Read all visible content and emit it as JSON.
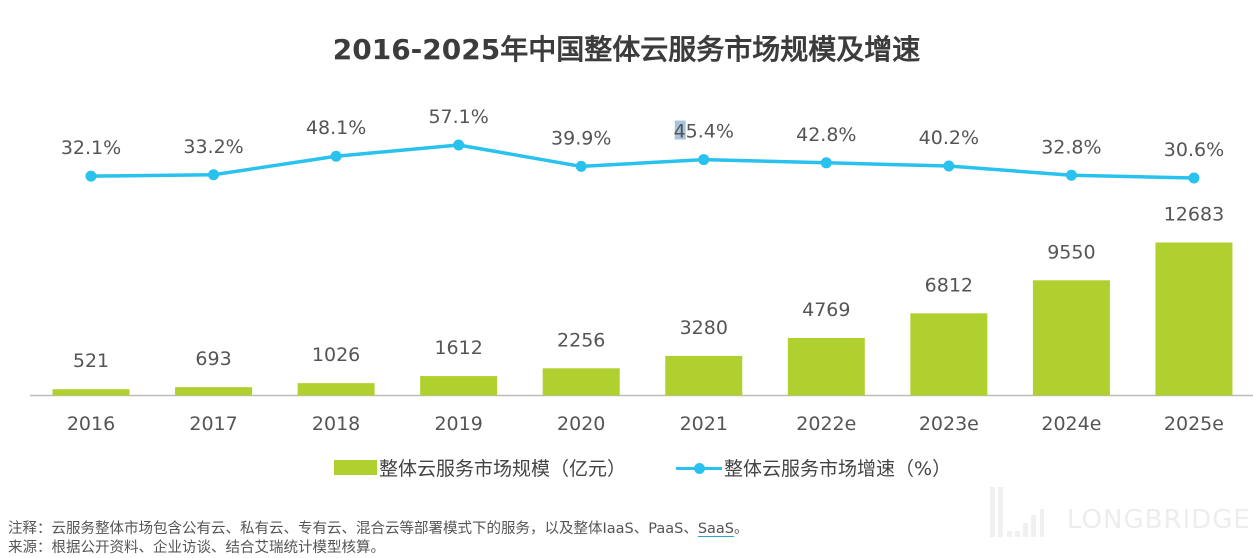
{
  "chart_data": {
    "type": "bar+line",
    "title": "2016-2025年中国整体云服务市场规模及增速",
    "categories": [
      "2016",
      "2017",
      "2018",
      "2019",
      "2020",
      "2021",
      "2022e",
      "2023e",
      "2024e",
      "2025e"
    ],
    "series": [
      {
        "name": "整体云服务市场规模（亿元）",
        "type": "bar",
        "color": "#b0d030",
        "values": [
          521,
          693,
          1026,
          1612,
          2256,
          3280,
          4769,
          6812,
          9550,
          12683
        ],
        "labels": [
          "521",
          "693",
          "1026",
          "1612",
          "2256",
          "3280",
          "4769",
          "6812",
          "9550",
          "12683"
        ]
      },
      {
        "name": "整体云服务市场增速（%）",
        "type": "line",
        "color": "#29c2ee",
        "values": [
          32.1,
          33.2,
          48.1,
          57.1,
          39.9,
          45.4,
          42.8,
          40.2,
          32.8,
          30.6
        ],
        "labels": [
          "32.1%",
          "33.2%",
          "48.1%",
          "57.1%",
          "39.9%",
          "45.4%",
          "42.8%",
          "40.2%",
          "32.8%",
          "30.6%"
        ]
      }
    ],
    "legend": {
      "position": "bottom",
      "bar_label": "整体云服务市场规模（亿元）",
      "line_label": "整体云服务市场增速（%）"
    },
    "xlabel": "",
    "ylabel": "",
    "grid": false
  },
  "notes": {
    "note_prefix": "注释：云服务整体市场包含公有云、私有云、专有云、混合云等部署模式下的服务，以及整体IaaS、PaaS、",
    "note_saas": "SaaS",
    "note_suffix": "。",
    "source": "来源：根据公开资料、企业访谈、结合艾瑞统计模型核算。"
  },
  "watermark": {
    "text": "LONGBRIDGE"
  }
}
